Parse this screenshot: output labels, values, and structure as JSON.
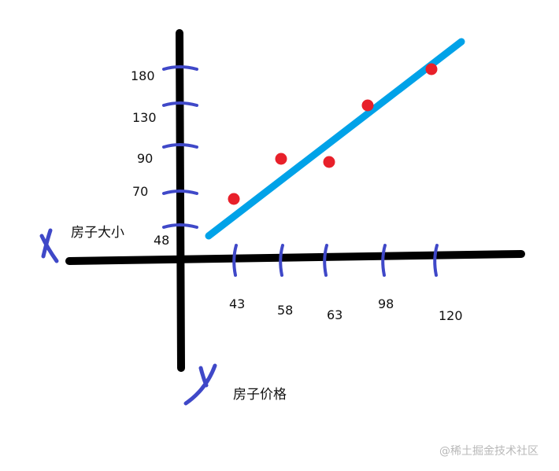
{
  "x_axis_label": "房子大小",
  "y_axis_label": "房子价格",
  "x_letter": "x",
  "y_letter": "y",
  "x_ticks": [
    "43",
    "58",
    "63",
    "98",
    "120"
  ],
  "y_ticks": [
    "48",
    "70",
    "90",
    "130",
    "180"
  ],
  "watermark": "@稀土掘金技术社区",
  "colors": {
    "axis": "#000000",
    "ticks": "#3f48c8",
    "points": "#e8202a",
    "fit_line": "#00a2e8"
  },
  "points_count_shown": 5
}
